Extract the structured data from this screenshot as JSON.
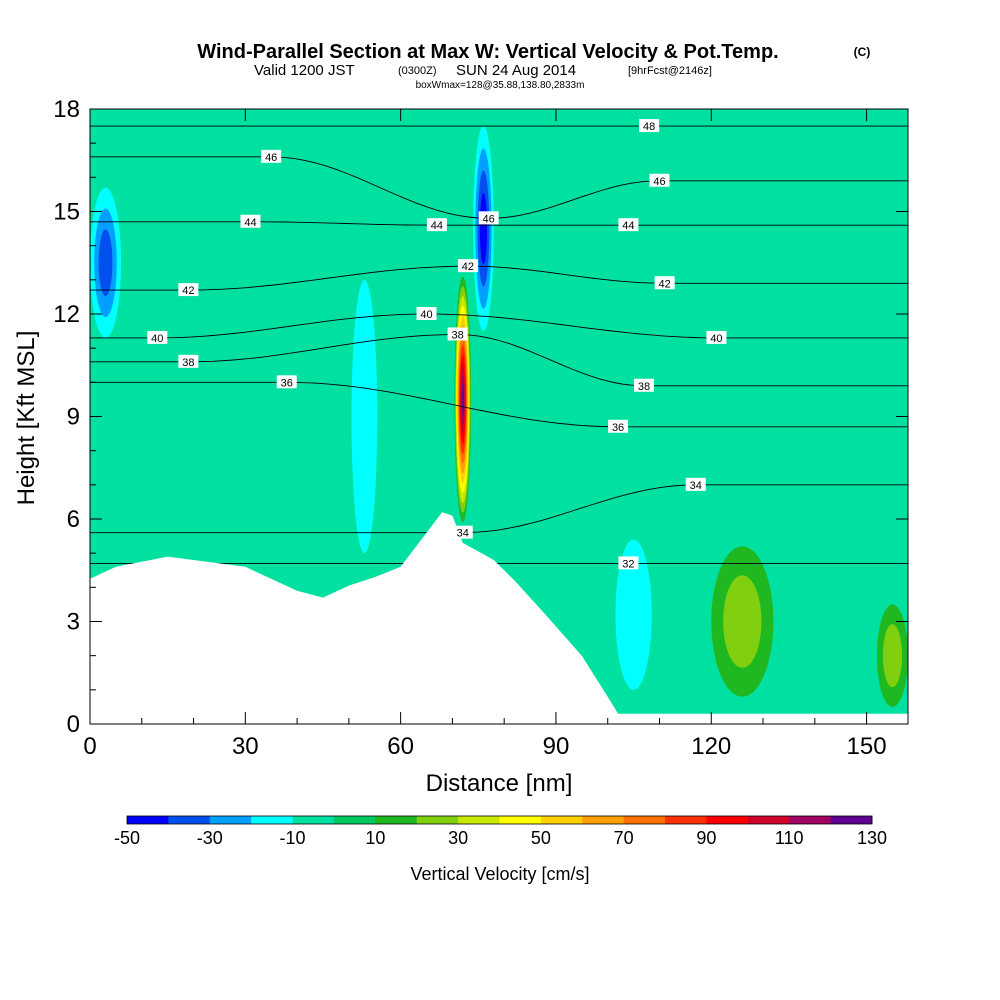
{
  "chart_data": {
    "type": "heatmap",
    "title": "Wind-Parallel Section at Max W: Vertical Velocity & Pot.Temp.",
    "title_suffix": "(C)",
    "subtitle_main": "Valid 1200 JST",
    "subtitle_z": "(0300Z)",
    "subtitle_date": "SUN 24 Aug 2014",
    "subtitle_fcst": "[9hrFcst@2146z]",
    "box_label": "boxWmax=128@35.88,138.80,2833m",
    "xlabel": "Distance [nm]",
    "ylabel": "Height [Kft MSL]",
    "xlim": [
      0,
      158
    ],
    "ylim": [
      0,
      18
    ],
    "xticks": [
      0,
      30,
      60,
      90,
      120,
      150
    ],
    "yticks": [
      0,
      3,
      6,
      9,
      12,
      15,
      18
    ],
    "terrain_profile": [
      [
        0,
        4.25
      ],
      [
        5,
        4.6
      ],
      [
        15,
        4.9
      ],
      [
        30,
        4.6
      ],
      [
        40,
        3.9
      ],
      [
        45,
        3.7
      ],
      [
        50,
        4.05
      ],
      [
        55,
        4.3
      ],
      [
        60,
        4.6
      ],
      [
        68,
        6.2
      ],
      [
        70,
        6.1
      ],
      [
        72,
        5.3
      ],
      [
        78,
        4.8
      ],
      [
        82,
        4.2
      ],
      [
        88,
        3.2
      ],
      [
        95,
        2.0
      ],
      [
        100,
        0.8
      ],
      [
        102,
        0.3
      ],
      [
        158,
        0.3
      ]
    ],
    "velocity_field": [
      {
        "x": 72,
        "y": 9.5,
        "rx": 1.6,
        "ry": 3.6,
        "value": 128
      },
      {
        "x": 76,
        "y": 14.5,
        "rx": 2.0,
        "ry": 3.0,
        "value": -50
      },
      {
        "x": 3,
        "y": 13.5,
        "rx": 3,
        "ry": 2.2,
        "value": -30
      },
      {
        "x": 53,
        "y": 9.0,
        "rx": 2.5,
        "ry": 4,
        "value": -15
      },
      {
        "x": 126,
        "y": 3.0,
        "rx": 6,
        "ry": 2.2,
        "value": 25
      },
      {
        "x": 155,
        "y": 2.0,
        "rx": 3,
        "ry": 1.5,
        "value": 25
      },
      {
        "x": 105,
        "y": 3.2,
        "rx": 3.5,
        "ry": 2.2,
        "value": -15
      }
    ],
    "isentropes": [
      {
        "value": 32,
        "label_x": 104,
        "label_y": 4.7
      },
      {
        "value": 34,
        "label_x": 72,
        "label_y": 5.6
      },
      {
        "value": 34,
        "label_x": 117,
        "label_y": 7.0
      },
      {
        "value": 36,
        "label_x": 38,
        "label_y": 10.0
      },
      {
        "value": 36,
        "label_x": 102,
        "label_y": 8.7
      },
      {
        "value": 38,
        "label_x": 19,
        "label_y": 10.6
      },
      {
        "value": 38,
        "label_x": 71,
        "label_y": 11.4
      },
      {
        "value": 38,
        "label_x": 107,
        "label_y": 9.9
      },
      {
        "value": 40,
        "label_x": 13,
        "label_y": 11.3
      },
      {
        "value": 40,
        "label_x": 65,
        "label_y": 12.0
      },
      {
        "value": 40,
        "label_x": 121,
        "label_y": 11.3
      },
      {
        "value": 42,
        "label_x": 19,
        "label_y": 12.7
      },
      {
        "value": 42,
        "label_x": 73,
        "label_y": 13.4
      },
      {
        "value": 42,
        "label_x": 111,
        "label_y": 12.9
      },
      {
        "value": 44,
        "label_x": 31,
        "label_y": 14.7
      },
      {
        "value": 44,
        "label_x": 67,
        "label_y": 14.6
      },
      {
        "value": 44,
        "label_x": 104,
        "label_y": 14.6
      },
      {
        "value": 46,
        "label_x": 35,
        "label_y": 16.6
      },
      {
        "value": 46,
        "label_x": 77,
        "label_y": 14.8
      },
      {
        "value": 46,
        "label_x": 110,
        "label_y": 15.9
      },
      {
        "value": 48,
        "label_x": 108,
        "label_y": 17.5
      }
    ],
    "colorbar": {
      "label": "Vertical Velocity [cm/s]",
      "range": [
        -50,
        130
      ],
      "tick_values": [
        -50,
        -30,
        -10,
        10,
        30,
        50,
        70,
        90,
        110,
        130
      ],
      "tick_labels": [
        "-50",
        "-30",
        "-10",
        "10",
        "30",
        "50",
        "70",
        "90",
        "110",
        "130"
      ],
      "colors": [
        "#0000ff",
        "#0050f0",
        "#00a0ff",
        "#00ffff",
        "#00e0a0",
        "#00c860",
        "#20b820",
        "#80d010",
        "#c8e800",
        "#ffff00",
        "#ffd000",
        "#ffa000",
        "#ff7000",
        "#ff3000",
        "#ff0000",
        "#d0002c",
        "#a00060",
        "#600090"
      ]
    }
  }
}
